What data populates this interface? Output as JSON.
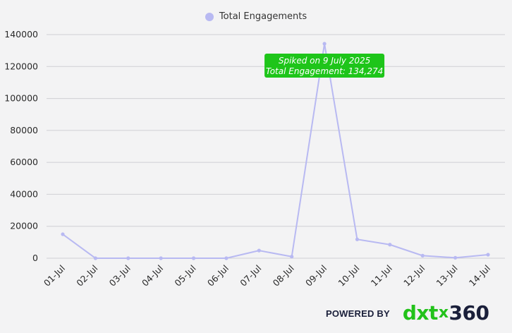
{
  "chart_data": {
    "type": "line",
    "categories": [
      "01-Jul",
      "02-Jul",
      "03-Jul",
      "04-Jul",
      "05-Jul",
      "06-Jul",
      "07-Jul",
      "08-Jul",
      "09-Jul",
      "10-Jul",
      "11-Jul",
      "12-Jul",
      "13-Jul",
      "14-Jul"
    ],
    "series": [
      {
        "name": "Total Engagements",
        "values": [
          15000,
          0,
          0,
          0,
          0,
          0,
          4800,
          1000,
          134274,
          11800,
          8500,
          1600,
          300,
          2200
        ]
      }
    ],
    "ylim": [
      0,
      140000
    ],
    "yticks": [
      0,
      20000,
      40000,
      60000,
      80000,
      100000,
      120000,
      140000
    ],
    "grid": true,
    "legend_position": "top-center",
    "annotation": {
      "category": "09-Jul",
      "line1": "Spiked on 9 July 2025",
      "line2": "Total Engagement:  134,274"
    },
    "colors": {
      "series": "#b8b9f2",
      "grid": "#cfcfd4",
      "annotation_bg": "#1ec51a",
      "annotation_text": "#ffffff"
    }
  },
  "footer": {
    "powered_by": "POWERED BY",
    "brand_part1": "dxt",
    "brand_sep": "x",
    "brand_part2": "360"
  }
}
